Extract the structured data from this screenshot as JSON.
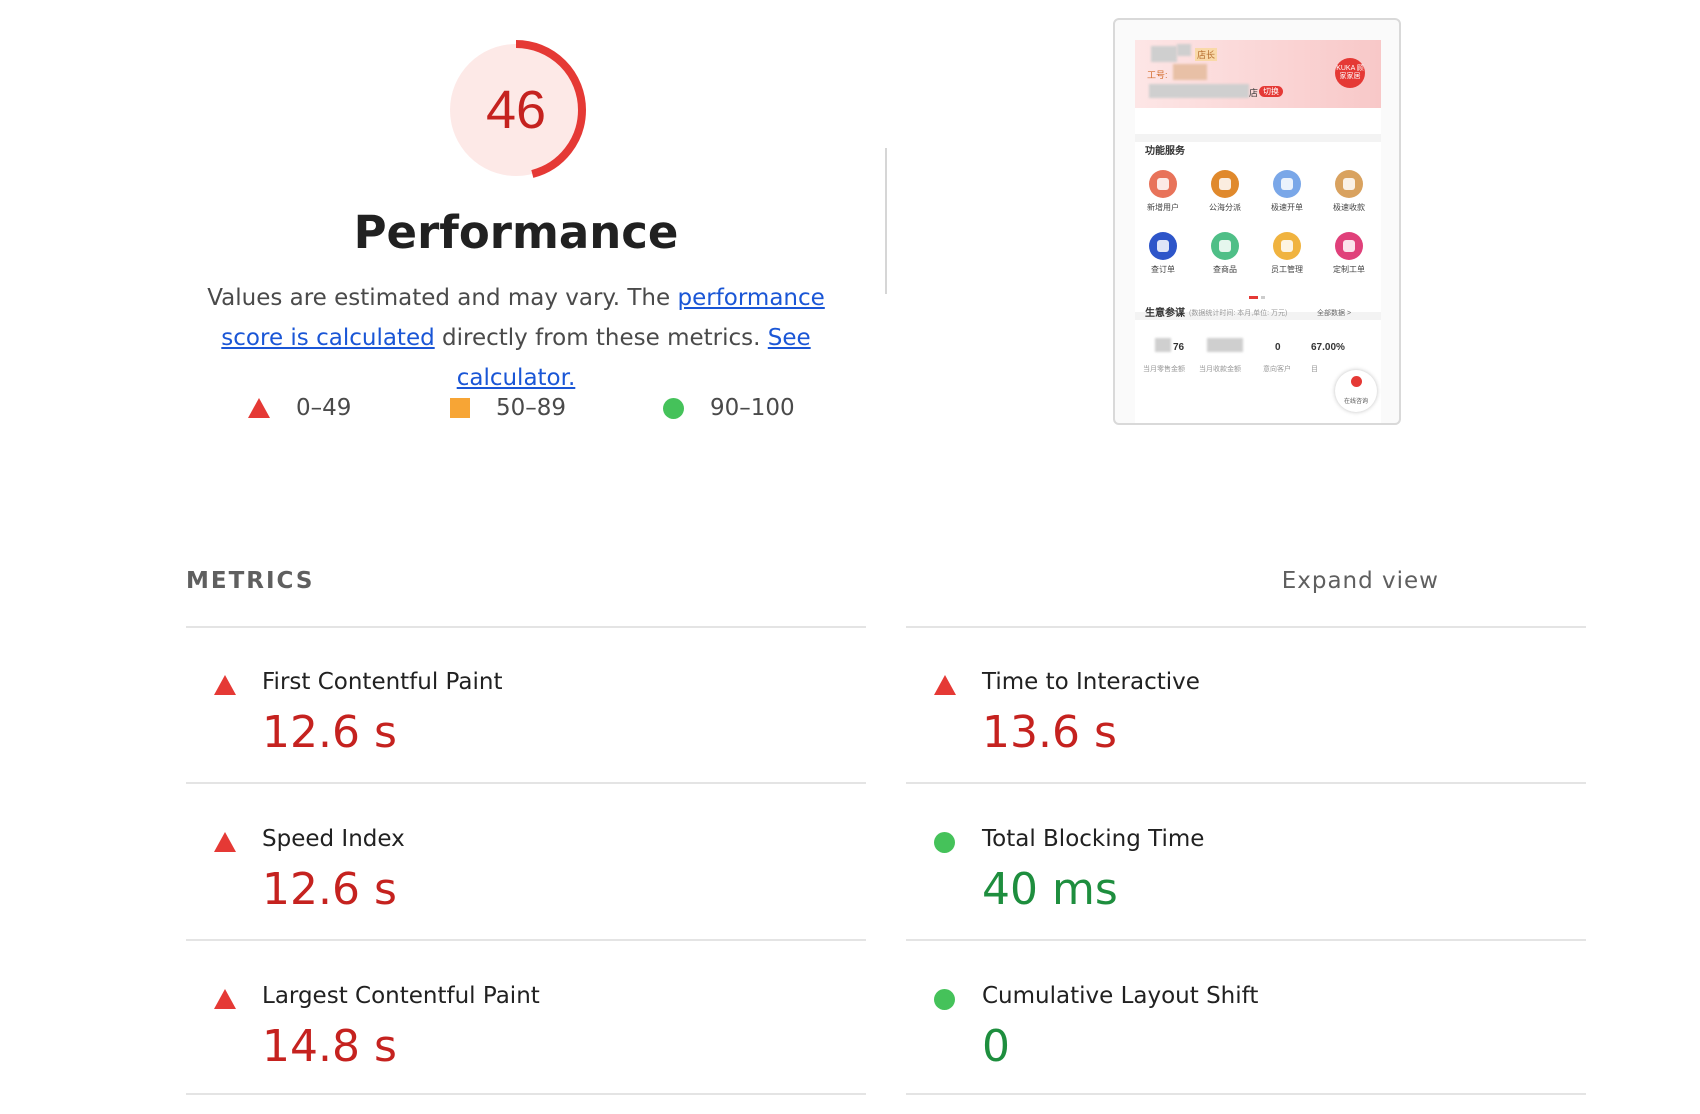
{
  "score": {
    "value": "46",
    "fraction": 0.46,
    "color": "#e53935"
  },
  "performance": {
    "title": "Performance",
    "desc_1": "Values are estimated and may vary. The ",
    "link_score": "performance score is calculated",
    "desc_2": " directly from these metrics. ",
    "link_calc": "See calculator."
  },
  "legend": [
    {
      "shape": "triangle",
      "label": "0–49",
      "color": "#e53935"
    },
    {
      "shape": "square",
      "label": "50–89",
      "color": "#f7a535"
    },
    {
      "shape": "circle",
      "label": "90–100",
      "color": "#45c25a"
    }
  ],
  "thumbnail": {
    "role_tag": "店长",
    "id_label": "工号:",
    "store_suffix": "店",
    "switch_label": "切换",
    "logo_text": "KUKA 顾家家居",
    "section_services": "功能服务",
    "services": [
      {
        "label": "新增用户",
        "color": "#e8735a"
      },
      {
        "label": "公海分派",
        "color": "#e0892c"
      },
      {
        "label": "极速开单",
        "color": "#7aa7e8"
      },
      {
        "label": "极速收款",
        "color": "#d9a25f"
      },
      {
        "label": "查订单",
        "color": "#2d55c9"
      },
      {
        "label": "查商品",
        "color": "#4fbf87"
      },
      {
        "label": "员工管理",
        "color": "#f0b33f"
      },
      {
        "label": "定制工单",
        "color": "#e0407a"
      }
    ],
    "section_business": "生意参谋",
    "business_note": "(数据统计时间: 本月,单位: 万元)",
    "business_all": "全部数据 >",
    "stats": [
      {
        "value": "76",
        "label": "当月零售金额"
      },
      {
        "value": "",
        "label": "当月收款金额"
      },
      {
        "value": "0",
        "label": "意向客户"
      },
      {
        "value": "67.00%",
        "label": "目"
      }
    ],
    "float_label": "在线咨询"
  },
  "metrics": {
    "title": "METRICS",
    "expand_label": "Expand view",
    "items": [
      {
        "name": "First Contentful Paint",
        "value": "12.6 s",
        "rating": "bad"
      },
      {
        "name": "Time to Interactive",
        "value": "13.6 s",
        "rating": "bad"
      },
      {
        "name": "Speed Index",
        "value": "12.6 s",
        "rating": "bad"
      },
      {
        "name": "Total Blocking Time",
        "value": "40 ms",
        "rating": "good"
      },
      {
        "name": "Largest Contentful Paint",
        "value": "14.8 s",
        "rating": "bad"
      },
      {
        "name": "Cumulative Layout Shift",
        "value": "0",
        "rating": "good"
      }
    ]
  }
}
